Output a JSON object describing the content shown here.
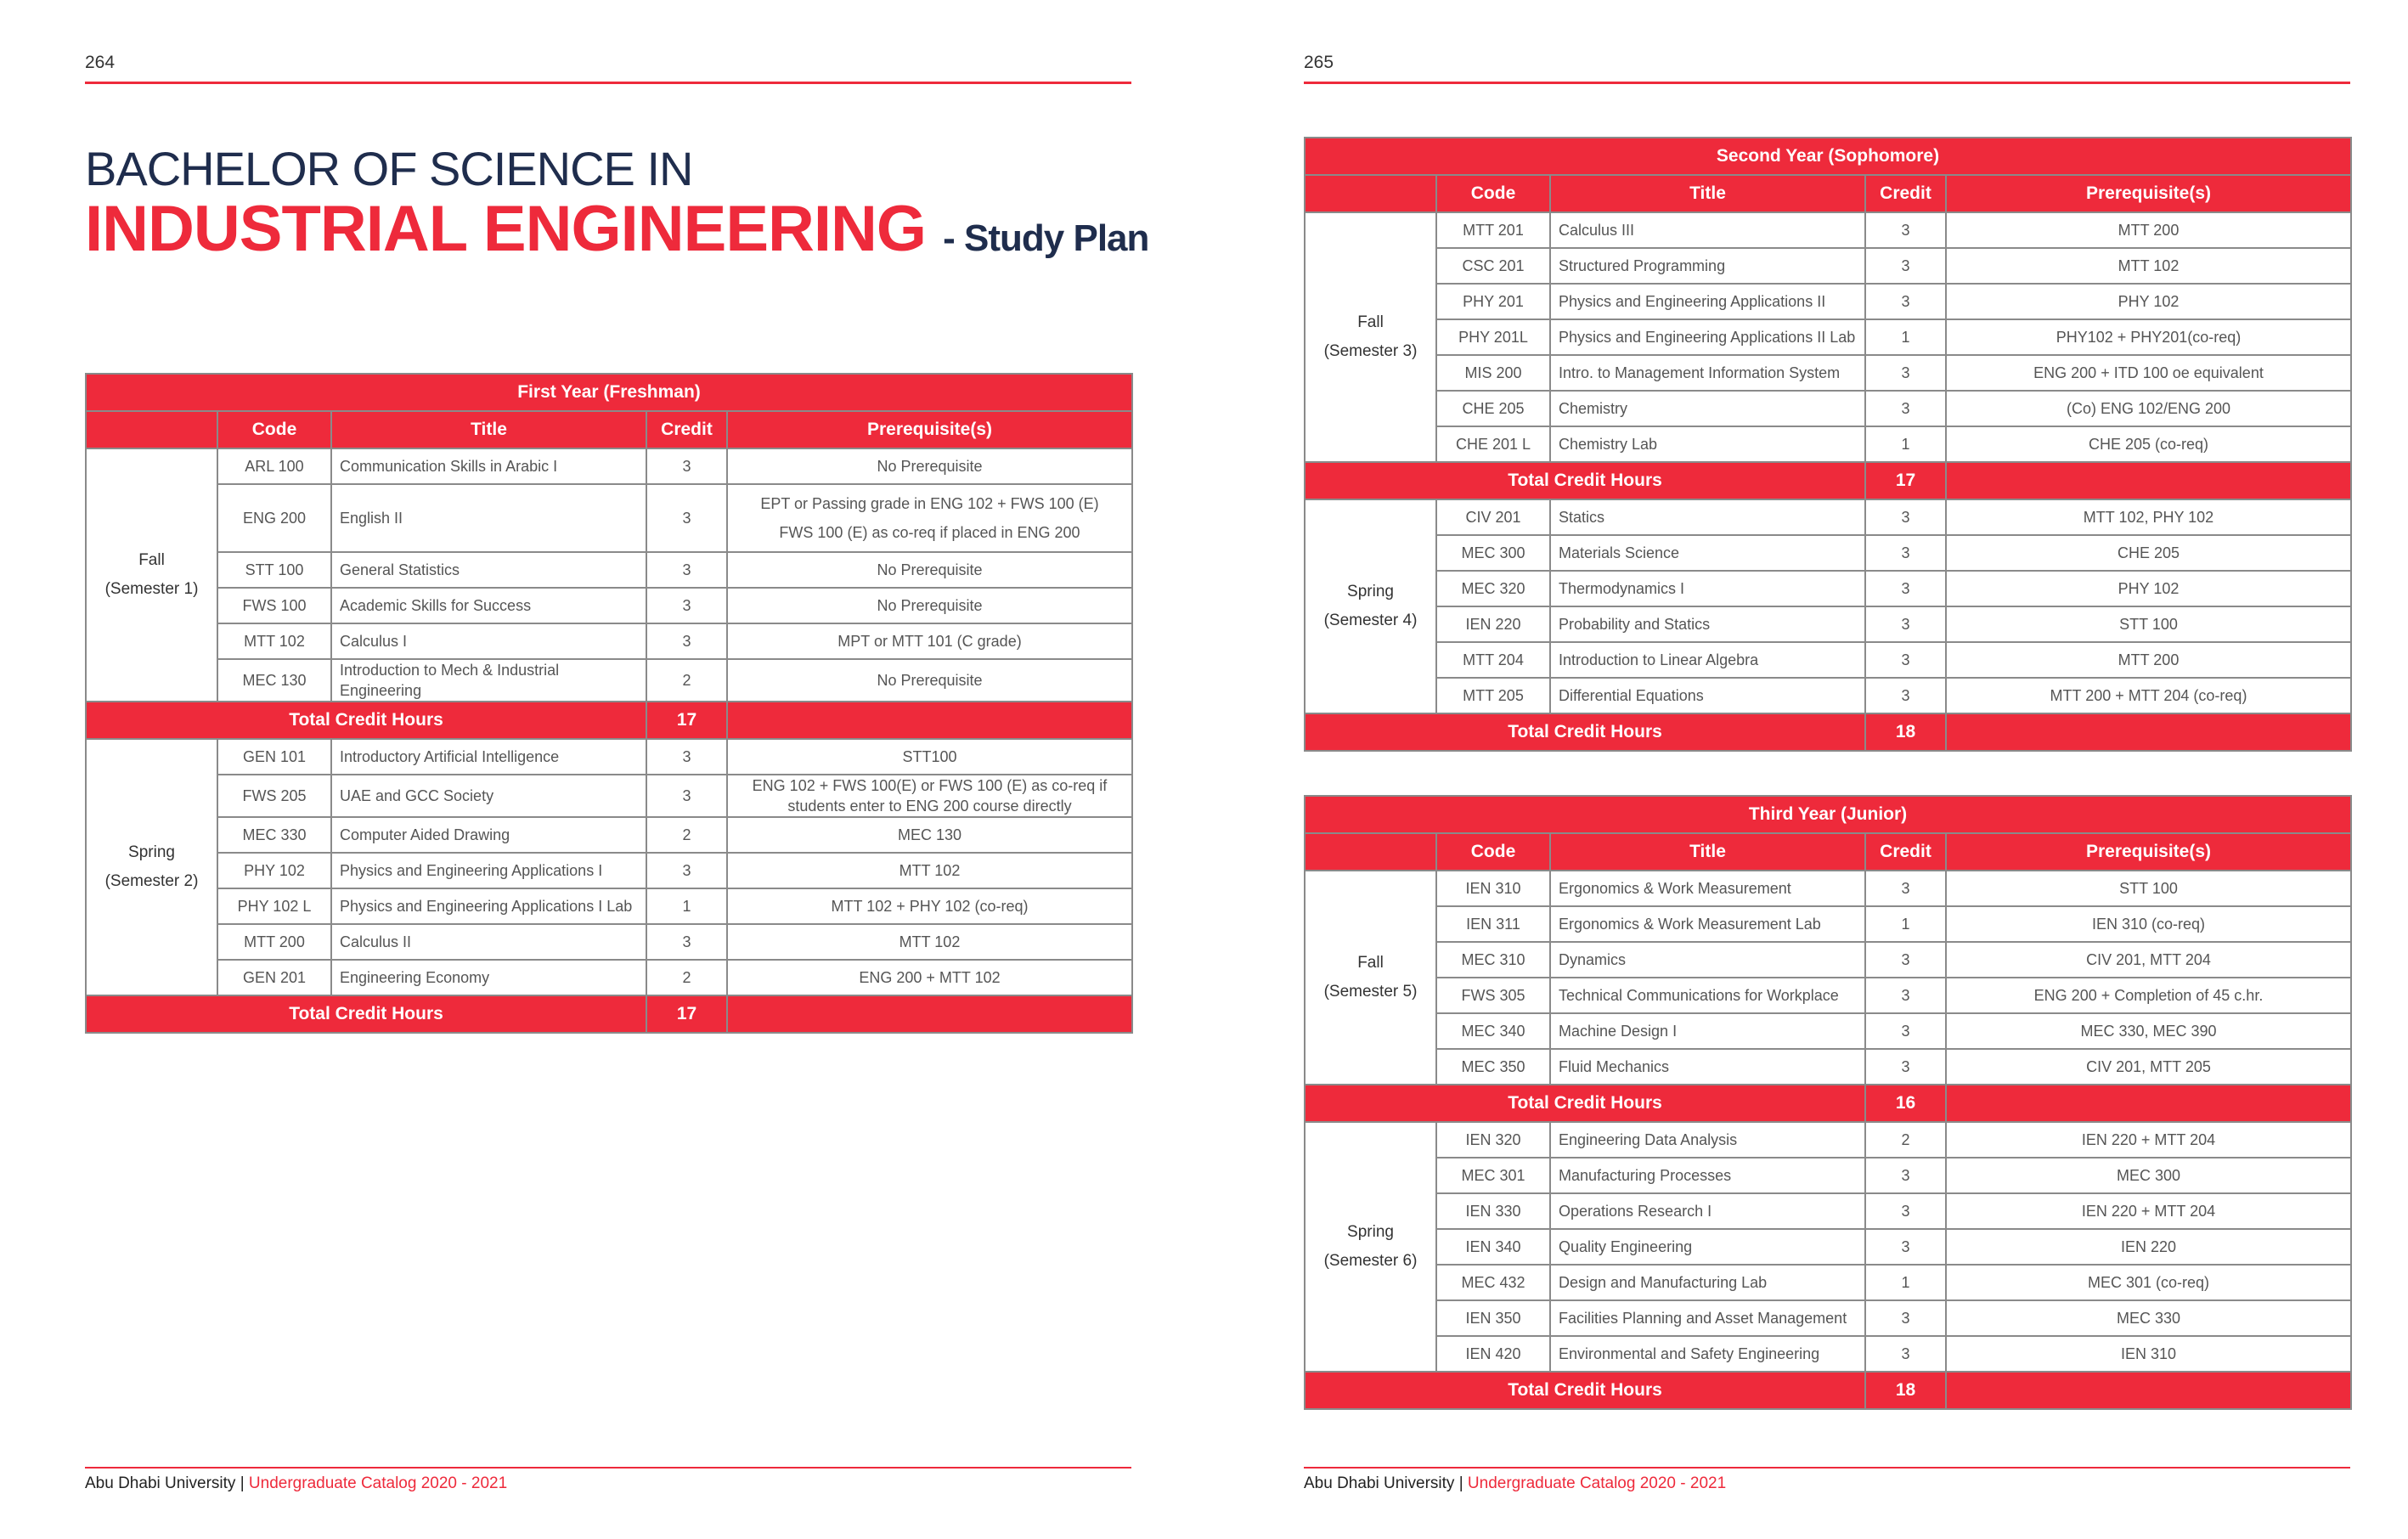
{
  "pages": [
    {
      "number": "264",
      "footer": {
        "org": "Abu Dhabi University",
        "sep": "|",
        "catalog": "Undergraduate Catalog 2020 - 2021"
      }
    },
    {
      "number": "265",
      "footer": {
        "org": "Abu Dhabi University",
        "sep": "|",
        "catalog": "Undergraduate Catalog 2020 - 2021"
      }
    }
  ],
  "heading": {
    "line1": "BACHELOR OF SCIENCE IN",
    "line2": "INDUSTRIAL ENGINEERING",
    "suffix": "- Study Plan"
  },
  "tables": [
    {
      "title": "First Year (Freshman)",
      "columns": [
        "Code",
        "Title",
        "Credit",
        "Prerequisite(s)"
      ],
      "semesters": [
        {
          "name": "Fall",
          "sub": "(Semester 1)",
          "rows": [
            [
              "ARL 100",
              "Communication Skills in Arabic I",
              3,
              "No Prerequisite"
            ],
            [
              "ENG 200",
              "English II",
              3,
              [
                "EPT or Passing grade in ENG 102 + FWS 100 (E)",
                "FWS 100 (E) as co-req if placed in ENG 200"
              ]
            ],
            [
              "STT 100",
              "General Statistics",
              3,
              "No Prerequisite"
            ],
            [
              "FWS 100",
              "Academic  Skills for Success",
              3,
              "No Prerequisite"
            ],
            [
              "MTT 102",
              "Calculus I",
              3,
              "MPT  or MTT 101 (C grade)"
            ],
            [
              "MEC 130",
              "Introduction to Mech & Industrial Engineering",
              2,
              "No Prerequisite"
            ]
          ],
          "total_label": "Total Credit Hours",
          "total": 17
        },
        {
          "name": "Spring",
          "sub": "(Semester 2)",
          "rows": [
            [
              "GEN 101",
              "Introductory Artificial Intelligence",
              3,
              "STT100"
            ],
            [
              "FWS 205",
              "UAE and GCC Society",
              3,
              "ENG 102 + FWS 100(E) or FWS 100 (E) as co-req if students enter to ENG 200 course directly"
            ],
            [
              "MEC 330",
              "Computer Aided Drawing",
              2,
              "MEC 130"
            ],
            [
              "PHY 102",
              "Physics and Engineering Applications I",
              3,
              "MTT 102"
            ],
            [
              "PHY 102 L",
              "Physics and Engineering Applications I Lab",
              1,
              "MTT 102 + PHY 102 (co-req)"
            ],
            [
              "MTT 200",
              "Calculus II",
              3,
              "MTT 102"
            ],
            [
              "GEN 201",
              "Engineering Economy",
              2,
              "ENG 200 + MTT 102"
            ]
          ],
          "total_label": "Total Credit Hours",
          "total": 17
        }
      ]
    },
    {
      "title": "Second Year (Sophomore)",
      "columns": [
        "Code",
        "Title",
        "Credit",
        "Prerequisite(s)"
      ],
      "semesters": [
        {
          "name": "Fall",
          "sub": "(Semester 3)",
          "rows": [
            [
              "MTT 201",
              "Calculus III",
              3,
              "MTT 200"
            ],
            [
              "CSC 201",
              "Structured Programming",
              3,
              "MTT 102"
            ],
            [
              "PHY 201",
              "Physics and Engineering Applications II",
              3,
              "PHY 102"
            ],
            [
              "PHY 201L",
              "Physics and Engineering Applications II Lab",
              1,
              "PHY102 + PHY201(co-req)"
            ],
            [
              "MIS 200",
              "Intro. to Management Information System",
              3,
              "ENG 200 + ITD 100 oe equivalent"
            ],
            [
              "CHE 205",
              "Chemistry",
              3,
              "(Co) ENG 102/ENG 200"
            ],
            [
              "CHE 201 L",
              "Chemistry Lab",
              1,
              "CHE 205 (co-req)"
            ]
          ],
          "total_label": "Total Credit Hours",
          "total": 17
        },
        {
          "name": "Spring",
          "sub": "(Semester 4)",
          "rows": [
            [
              "CIV 201",
              "Statics",
              3,
              "MTT 102, PHY 102"
            ],
            [
              "MEC 300",
              "Materials Science",
              3,
              "CHE 205"
            ],
            [
              "MEC 320",
              "Thermodynamics I",
              3,
              "PHY 102"
            ],
            [
              "IEN 220",
              "Probability and Statics",
              3,
              "STT 100"
            ],
            [
              "MTT 204",
              "Introduction to Linear Algebra",
              3,
              "MTT 200"
            ],
            [
              "MTT 205",
              "Differential Equations",
              3,
              "MTT 200 + MTT 204 (co-req)"
            ]
          ],
          "total_label": "Total Credit Hours",
          "total": 18
        }
      ]
    },
    {
      "title": "Third Year (Junior)",
      "columns": [
        "Code",
        "Title",
        "Credit",
        "Prerequisite(s)"
      ],
      "semesters": [
        {
          "name": "Fall",
          "sub": "(Semester 5)",
          "rows": [
            [
              "IEN 310",
              "Ergonomics & Work Measurement",
              3,
              "STT 100"
            ],
            [
              "IEN 311",
              "Ergonomics & Work Measurement Lab",
              1,
              "IEN 310 (co-req)"
            ],
            [
              "MEC 310",
              "Dynamics",
              3,
              "CIV 201, MTT 204"
            ],
            [
              "FWS 305",
              "Technical Communications for Workplace",
              3,
              "ENG 200 + Completion of 45 c.hr."
            ],
            [
              "MEC 340",
              "Machine Design I",
              3,
              "MEC 330, MEC 390"
            ],
            [
              "MEC 350",
              "Fluid Mechanics",
              3,
              "CIV 201, MTT 205"
            ]
          ],
          "total_label": "Total Credit Hours",
          "total": 16
        },
        {
          "name": "Spring",
          "sub": "(Semester 6)",
          "rows": [
            [
              "IEN 320",
              "Engineering Data Analysis",
              2,
              "IEN 220 + MTT 204"
            ],
            [
              "MEC 301",
              "Manufacturing Processes",
              3,
              "MEC 300"
            ],
            [
              "IEN 330",
              "Operations Research I",
              3,
              "IEN 220 + MTT 204"
            ],
            [
              "IEN 340",
              "Quality Engineering",
              3,
              "IEN 220"
            ],
            [
              "MEC 432",
              "Design and Manufacturing Lab",
              1,
              "MEC 301 (co-req)"
            ],
            [
              "IEN 350",
              "Facilities Planning and Asset Management",
              3,
              "MEC 330"
            ],
            [
              "IEN 420",
              "Environmental and Safety Engineering",
              3,
              "IEN 310"
            ]
          ],
          "total_label": "Total Credit Hours",
          "total": 18
        }
      ]
    }
  ]
}
